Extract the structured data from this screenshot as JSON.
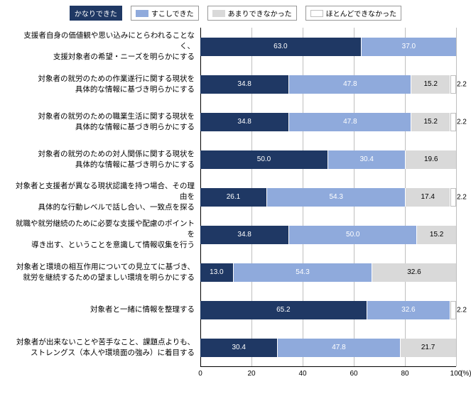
{
  "chart": {
    "type": "stacked-bar-horizontal",
    "xlim": [
      0,
      100
    ],
    "xtick_step": 20,
    "xticks": [
      0,
      20,
      40,
      60,
      80,
      100
    ],
    "x_unit": "(%)",
    "label_fontsize": 10.5,
    "value_fontsize": 10,
    "grid_color": "#bfbfbf",
    "axis_color": "#000000",
    "background_color": "#ffffff",
    "legend": [
      {
        "label": "かなりできた",
        "color": "#1f3864",
        "text_color": "#ffffff"
      },
      {
        "label": "すこしできた",
        "color": "#8faadc",
        "text_color": "#ffffff"
      },
      {
        "label": "あまりできなかった",
        "color": "#d9d9d9",
        "text_color": "#000000"
      },
      {
        "label": "ほとんどできなかった",
        "color": "#ffffff",
        "text_color": "#000000",
        "border": "#bfbfbf"
      }
    ],
    "categories": [
      {
        "label_line1": "支援者自身の価値観や思い込みにとらわれることなく、",
        "label_line2": "支援対象者の希望・ニーズを明らかにする",
        "values": [
          63.0,
          37.0,
          null,
          null
        ]
      },
      {
        "label_line1": "対象者の就労のための作業遂行に関する現状を",
        "label_line2": "具体的な情報に基づき明らかにする",
        "values": [
          34.8,
          47.8,
          15.2,
          2.2
        ]
      },
      {
        "label_line1": "対象者の就労のための職業生活に関する現状を",
        "label_line2": "具体的な情報に基づき明らかにする",
        "values": [
          34.8,
          47.8,
          15.2,
          2.2
        ]
      },
      {
        "label_line1": "対象者の就労のための対人関係に関する現状を",
        "label_line2": "具体的な情報に基づき明らかにする",
        "values": [
          50.0,
          30.4,
          19.6,
          null
        ]
      },
      {
        "label_line1": "対象者と支援者が異なる現状認識を持つ場合、その理由を",
        "label_line2": "具体的な行動レベルで話し合い、一致点を探る",
        "values": [
          26.1,
          54.3,
          17.4,
          2.2
        ]
      },
      {
        "label_line1": "就職や就労継続のために必要な支援や配慮のポイントを",
        "label_line2": "導き出す、ということを意識して情報収集を行う",
        "values": [
          34.8,
          50.0,
          15.2,
          null
        ]
      },
      {
        "label_line1": "対象者と環境の相互作用についての見立てに基づき、",
        "label_line2": "就労を継続するための望ましい環境を明らかにする",
        "values": [
          13.0,
          54.3,
          32.6,
          null
        ]
      },
      {
        "label_line1": "",
        "label_line2": "対象者と一緒に情報を整理する",
        "values": [
          65.2,
          32.6,
          null,
          2.2
        ]
      },
      {
        "label_line1": "対象者が出来ないことや苦手なこと、課題点よりも、",
        "label_line2": "ストレングス（本人や環境面の強み）に着目する",
        "values": [
          30.4,
          47.8,
          21.7,
          null
        ]
      }
    ]
  }
}
